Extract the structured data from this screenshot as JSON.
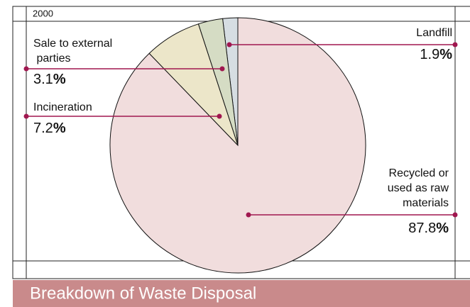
{
  "chart_data": {
    "type": "pie",
    "title": "Breakdown of Waste Disposal",
    "subtitle": "2000",
    "categories": [
      "Landfill",
      "Sale to external parties",
      "Incineration",
      "Recycled or used as raw materials"
    ],
    "values": [
      1.9,
      3.1,
      7.2,
      87.8
    ],
    "value_labels": [
      "1.9%",
      "3.1%",
      "7.2%",
      "87.8%"
    ],
    "colors": [
      "#d6dde2",
      "#d5dcc4",
      "#ece6c9",
      "#f1dddd"
    ]
  }
}
